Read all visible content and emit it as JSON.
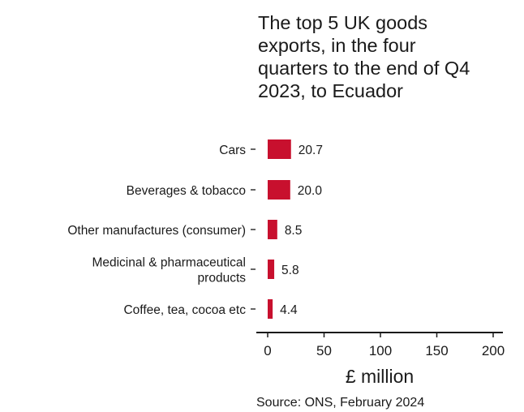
{
  "chart_data": {
    "type": "bar",
    "orientation": "horizontal",
    "title_lines": [
      "The top 5 UK goods",
      "exports, in the four",
      "quarters to the end of Q4",
      "2023, to Ecuador"
    ],
    "categories": [
      [
        "Cars"
      ],
      [
        "Beverages & tobacco"
      ],
      [
        "Other manufactures (consumer)"
      ],
      [
        "Medicinal & pharmaceutical",
        "products"
      ],
      [
        "Coffee, tea, cocoa etc"
      ]
    ],
    "values": [
      20.7,
      20.0,
      8.5,
      5.8,
      4.4
    ],
    "value_labels": [
      "20.7",
      "20.0",
      "8.5",
      "5.8",
      "4.4"
    ],
    "xlabel": "£ million",
    "xlim": [
      0,
      200
    ],
    "xticks": [
      0,
      50,
      100,
      150,
      200
    ],
    "xtick_labels": [
      "0",
      "50",
      "100",
      "150",
      "200"
    ],
    "bar_color": "#c8102e",
    "grid": false,
    "source": "Source: ONS, February 2024"
  }
}
